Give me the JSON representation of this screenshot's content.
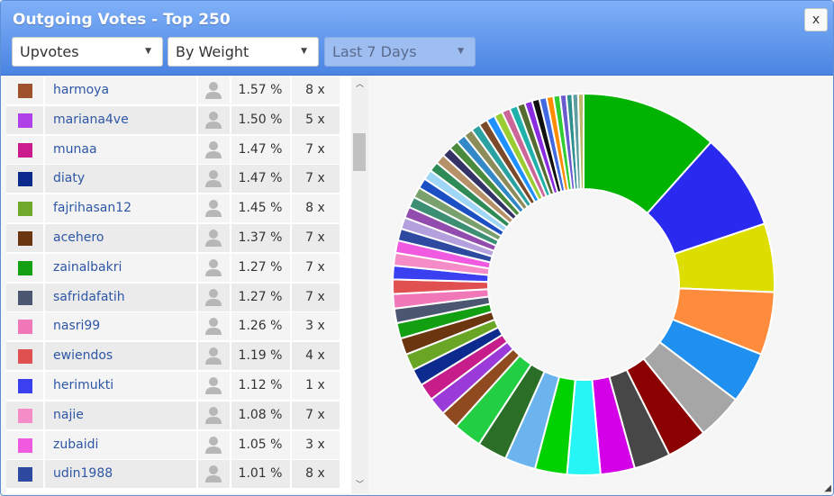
{
  "window": {
    "title": "Outgoing Votes - Top 250",
    "close_label": "x"
  },
  "filters": {
    "type": "Upvotes",
    "sort": "By Weight",
    "period": "Last 7 Days"
  },
  "rows": [
    {
      "color": "#a0522d",
      "name": "harmoya",
      "pct": "1.57 %",
      "count": "8 x"
    },
    {
      "color": "#b040e8",
      "name": "mariana4ve",
      "pct": "1.50 %",
      "count": "5 x"
    },
    {
      "color": "#cc1a8f",
      "name": "munaa",
      "pct": "1.47 %",
      "count": "7 x"
    },
    {
      "color": "#0c2a8e",
      "name": "diaty",
      "pct": "1.47 %",
      "count": "7 x"
    },
    {
      "color": "#6fa82a",
      "name": "fajrihasan12",
      "pct": "1.45 %",
      "count": "8 x"
    },
    {
      "color": "#6b3510",
      "name": "acehero",
      "pct": "1.37 %",
      "count": "7 x"
    },
    {
      "color": "#13a013",
      "name": "zainalbakri",
      "pct": "1.27 %",
      "count": "7 x"
    },
    {
      "color": "#4b5670",
      "name": "safridafatih",
      "pct": "1.27 %",
      "count": "7 x"
    },
    {
      "color": "#f078b8",
      "name": "nasri99",
      "pct": "1.26 %",
      "count": "3 x"
    },
    {
      "color": "#e05050",
      "name": "ewiendos",
      "pct": "1.19 %",
      "count": "4 x"
    },
    {
      "color": "#3a40f0",
      "name": "herimukti",
      "pct": "1.12 %",
      "count": "1 x"
    },
    {
      "color": "#f58cc8",
      "name": "najie",
      "pct": "1.08 %",
      "count": "7 x"
    },
    {
      "color": "#f05ae0",
      "name": "zubaidi",
      "pct": "1.05 %",
      "count": "3 x"
    },
    {
      "color": "#2e4aa0",
      "name": "udin1988",
      "pct": "1.01 %",
      "count": "8 x"
    }
  ],
  "chart_data": {
    "type": "pie",
    "donut": true,
    "colors": [
      "#00b300",
      "#2929f0",
      "#dddd00",
      "#ff8c3c",
      "#1f8ff0",
      "#a6a6a6",
      "#8b0000",
      "#474747",
      "#d400e8",
      "#27f5f5",
      "#00d100",
      "#6cb4ee",
      "#2a6e27",
      "#22cf42",
      "#8f4a20",
      "#9a3ad8",
      "#c71d8a",
      "#0d2a8e",
      "#6aa626",
      "#6b3510",
      "#12a012",
      "#4b5670",
      "#f078b8",
      "#e05050",
      "#3a40f0",
      "#f58cc8",
      "#f05ae0",
      "#2e4aa0",
      "#b4a0dc",
      "#924cad",
      "#3c8f72",
      "#7aa06e",
      "#1d4fc4",
      "#9fd6f5",
      "#2e8b57",
      "#b69066",
      "#333366",
      "#4a8a3c",
      "#3388c8",
      "#8c8c5a",
      "#2aa2a2",
      "#7a4a2a",
      "#1e90ff",
      "#9acd32",
      "#cc6699",
      "#20b2aa",
      "#556b2f",
      "#8a2be2",
      "#111111",
      "#4169e1",
      "#ff8c00",
      "#32cd32",
      "#6a5acd",
      "#2f8f8f",
      "#5f9ea0",
      "#bdb76b"
    ],
    "values": [
      12.0,
      8.5,
      6.0,
      5.5,
      4.5,
      4.0,
      3.5,
      3.2,
      3.0,
      2.9,
      2.8,
      2.7,
      2.6,
      2.5,
      1.6,
      1.57,
      1.5,
      1.47,
      1.47,
      1.45,
      1.37,
      1.27,
      1.27,
      1.26,
      1.19,
      1.12,
      1.08,
      1.05,
      1.01,
      0.98,
      0.95,
      0.93,
      0.9,
      0.88,
      0.86,
      0.85,
      0.84,
      0.83,
      0.82,
      0.8,
      0.78,
      0.76,
      0.75,
      0.74,
      0.72,
      0.7,
      0.68,
      0.66,
      0.65,
      0.63,
      0.6,
      0.58,
      0.55,
      0.52,
      0.5,
      0.48
    ]
  }
}
